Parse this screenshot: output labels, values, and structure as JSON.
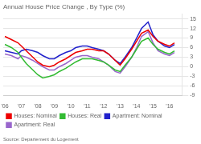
{
  "chart_data": {
    "type": "line",
    "title": "Annual House Price Change , By Type (%)",
    "source": "Source: Departement du Logement",
    "x": [
      2006,
      2006.4,
      2006.8,
      2007,
      2007.3,
      2007.7,
      2008,
      2008.3,
      2008.7,
      2009,
      2009.3,
      2009.7,
      2010,
      2010.3,
      2010.7,
      2011,
      2011.3,
      2011.7,
      2012,
      2012.3,
      2012.7,
      2013,
      2013.3,
      2013.7,
      2014,
      2014.3,
      2014.7,
      2015,
      2015.3,
      2015.7,
      2016,
      2016.3
    ],
    "series": [
      {
        "name": "Houses: Nominal",
        "color": "#ee0000",
        "values": [
          9.5,
          8.5,
          7.5,
          6.5,
          5.0,
          3.0,
          1.5,
          0.5,
          0.0,
          0.5,
          1.5,
          2.5,
          3.5,
          4.5,
          5.0,
          5.5,
          5.5,
          5.0,
          5.0,
          4.0,
          2.0,
          0.5,
          2.5,
          5.5,
          8.0,
          10.5,
          11.5,
          9.5,
          8.0,
          7.0,
          6.5,
          7.5
        ]
      },
      {
        "name": "Houses: Real",
        "color": "#33bb33",
        "values": [
          7.0,
          6.0,
          4.5,
          3.0,
          1.0,
          -1.0,
          -2.5,
          -3.5,
          -3.0,
          -2.5,
          -1.5,
          -0.5,
          0.5,
          1.5,
          2.5,
          2.5,
          2.5,
          2.0,
          1.5,
          0.5,
          -1.0,
          -1.5,
          0.5,
          3.0,
          5.5,
          8.0,
          9.0,
          7.0,
          5.5,
          4.5,
          4.0,
          5.0
        ]
      },
      {
        "name": "Apartment: Nominal",
        "color": "#2222cc",
        "values": [
          5.0,
          4.5,
          4.0,
          5.0,
          5.5,
          5.0,
          4.5,
          3.5,
          2.5,
          2.5,
          3.5,
          4.5,
          5.0,
          6.0,
          6.5,
          6.5,
          6.0,
          5.5,
          5.0,
          4.0,
          2.0,
          1.0,
          3.0,
          6.0,
          9.0,
          12.0,
          14.0,
          10.0,
          8.0,
          6.5,
          6.0,
          7.0
        ]
      },
      {
        "name": "Apartment: Real",
        "color": "#9966cc",
        "values": [
          4.0,
          3.5,
          2.5,
          3.5,
          3.0,
          2.0,
          1.0,
          0.0,
          -1.0,
          -1.0,
          0.0,
          1.0,
          2.0,
          3.0,
          3.5,
          3.5,
          3.0,
          2.5,
          1.5,
          0.5,
          -1.5,
          -2.0,
          0.0,
          3.0,
          6.0,
          9.5,
          11.0,
          7.5,
          5.0,
          4.0,
          3.5,
          4.5
        ]
      }
    ],
    "xlim": [
      2005.9,
      2016.75
    ],
    "xticks": [
      {
        "value": 2006,
        "label": "'06"
      },
      {
        "value": 2007,
        "label": "'07"
      },
      {
        "value": 2008,
        "label": "'08"
      },
      {
        "value": 2009,
        "label": "'09"
      },
      {
        "value": 2010,
        "label": "'10"
      },
      {
        "value": 2011,
        "label": "'11"
      },
      {
        "value": 2012,
        "label": "'12"
      },
      {
        "value": 2013,
        "label": "'13"
      },
      {
        "value": 2014,
        "label": "'14"
      },
      {
        "value": 2015,
        "label": "'15"
      },
      {
        "value": 2016,
        "label": "'16"
      }
    ],
    "ylim": [
      -9,
      16.5
    ],
    "yticks": [
      -9,
      -6,
      -3,
      0,
      3,
      6,
      9,
      12,
      15
    ],
    "grid": true,
    "legend": "bottom"
  }
}
